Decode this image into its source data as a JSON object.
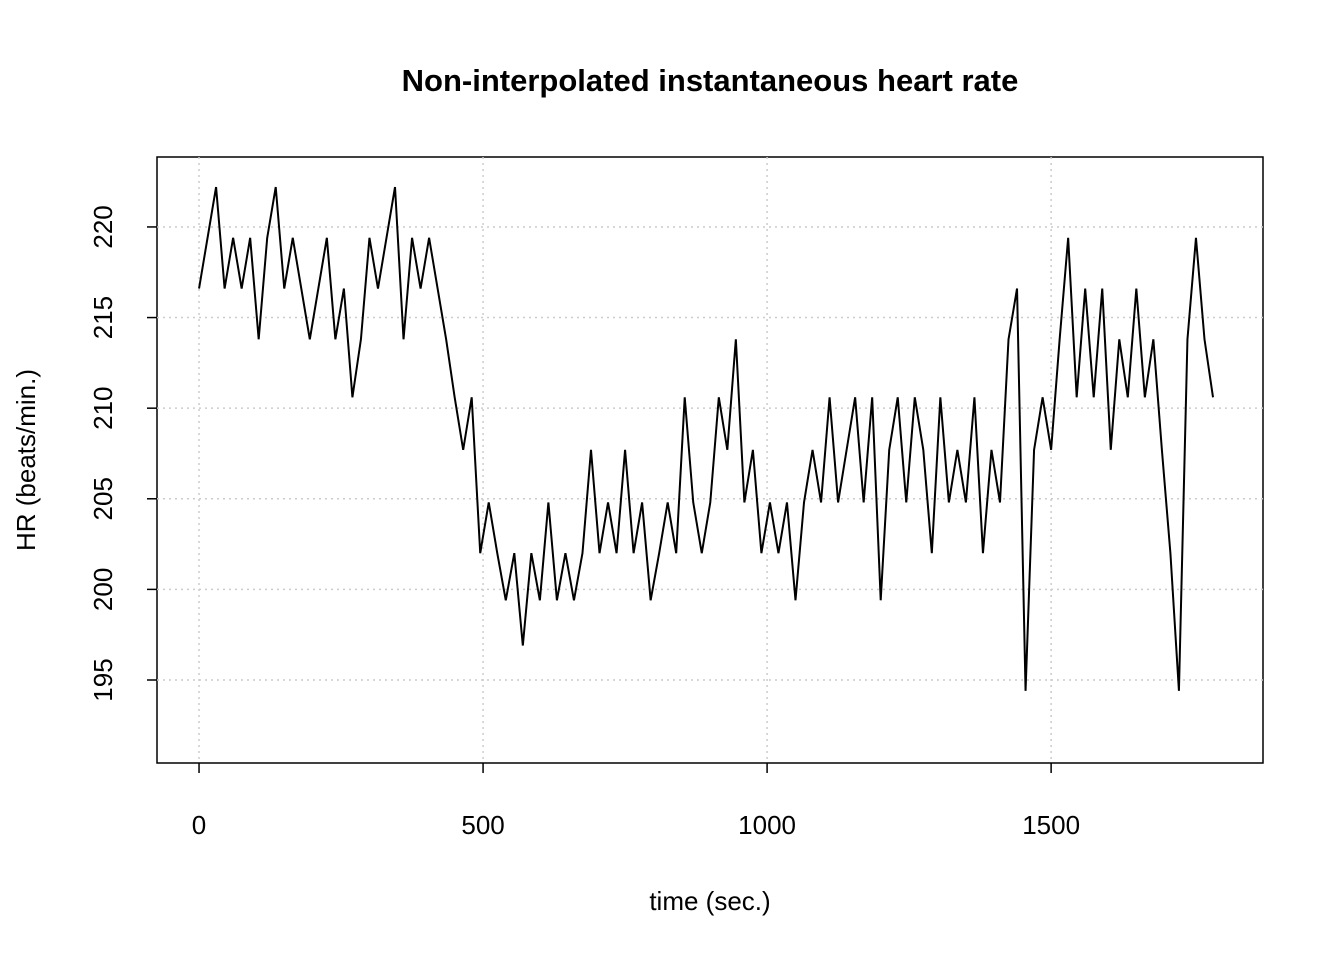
{
  "chart_data": {
    "type": "line",
    "title": "Non-interpolated instantaneous heart rate",
    "x_label": "time (sec.)",
    "y_label": "HR (beats/min.)",
    "x": [
      0,
      15,
      30,
      45,
      60,
      75,
      90,
      105,
      120,
      135,
      150,
      165,
      180,
      195,
      210,
      225,
      240,
      255,
      270,
      285,
      300,
      315,
      330,
      345,
      360,
      375,
      390,
      405,
      420,
      435,
      450,
      465,
      480,
      495,
      510,
      525,
      540,
      555,
      570,
      585,
      600,
      615,
      630,
      645,
      660,
      675,
      690,
      705,
      720,
      735,
      750,
      765,
      780,
      795,
      810,
      825,
      840,
      855,
      870,
      885,
      900,
      915,
      930,
      945,
      960,
      975,
      990,
      1005,
      1020,
      1035,
      1050,
      1065,
      1080,
      1095,
      1110,
      1125,
      1140,
      1155,
      1170,
      1185,
      1200,
      1215,
      1230,
      1245,
      1260,
      1275,
      1290,
      1305,
      1320,
      1335,
      1350,
      1365,
      1380,
      1395,
      1410,
      1425,
      1440,
      1455,
      1470,
      1485,
      1500,
      1515,
      1530,
      1545,
      1560,
      1575,
      1590,
      1605,
      1620,
      1635,
      1650,
      1665,
      1680,
      1695,
      1710,
      1725,
      1740,
      1755,
      1770,
      1785
    ],
    "series": [
      {
        "name": "HR",
        "color": "#000000",
        "values": [
          216.6,
          219.4,
          222.2,
          216.6,
          219.4,
          216.6,
          219.4,
          213.8,
          219.4,
          222.2,
          216.6,
          219.4,
          216.6,
          213.8,
          216.6,
          219.4,
          213.8,
          216.6,
          210.6,
          213.8,
          219.4,
          216.6,
          219.4,
          222.2,
          213.8,
          219.4,
          216.6,
          219.4,
          216.6,
          213.8,
          210.6,
          207.7,
          210.6,
          202.0,
          204.8,
          202.0,
          199.4,
          202.0,
          196.9,
          202.0,
          199.4,
          204.8,
          199.4,
          202.0,
          199.4,
          202.0,
          207.7,
          202.0,
          204.8,
          202.0,
          207.7,
          202.0,
          204.8,
          199.4,
          202.0,
          204.8,
          202.0,
          210.6,
          204.8,
          202.0,
          204.8,
          210.6,
          207.7,
          213.8,
          204.8,
          207.7,
          202.0,
          204.8,
          202.0,
          204.8,
          199.4,
          204.8,
          207.7,
          204.8,
          210.6,
          204.8,
          207.7,
          210.6,
          204.8,
          210.6,
          199.4,
          207.7,
          210.6,
          204.8,
          210.6,
          207.7,
          202.0,
          210.6,
          204.8,
          207.7,
          204.8,
          210.6,
          202.0,
          207.7,
          204.8,
          213.8,
          216.6,
          194.4,
          207.7,
          210.6,
          207.7,
          213.8,
          219.4,
          210.6,
          216.6,
          210.6,
          216.6,
          207.7,
          213.8,
          210.6,
          216.6,
          210.6,
          213.8,
          207.7,
          202.0,
          194.4,
          213.8,
          219.4,
          213.8,
          210.6
        ]
      }
    ],
    "xlim": [
      -74,
      1873
    ],
    "ylim": [
      190.42,
      223.86
    ],
    "xticks": [
      0,
      500,
      1000,
      1500
    ],
    "yticks": [
      195,
      200,
      205,
      210,
      215,
      220
    ],
    "grid": true
  }
}
